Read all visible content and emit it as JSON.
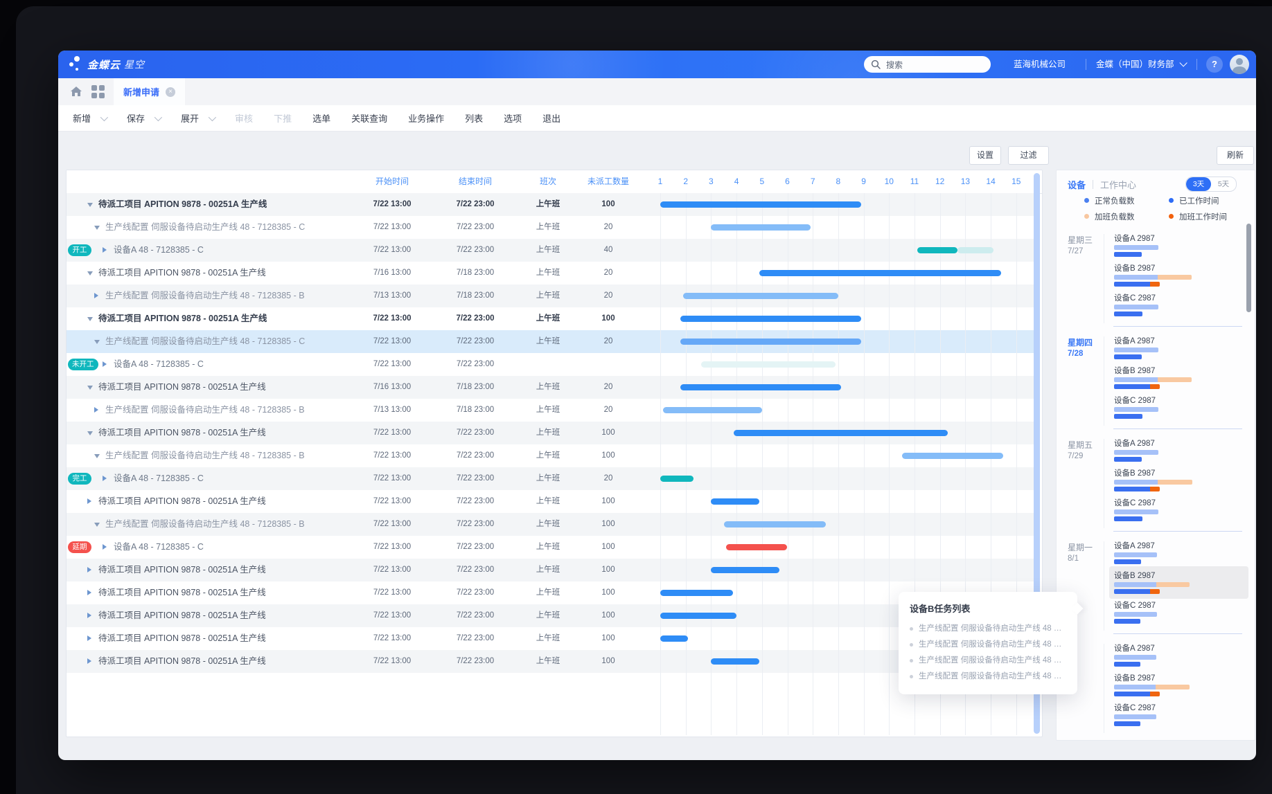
{
  "header": {
    "logo_main": "金蝶云",
    "logo_sub": "星空",
    "search_placeholder": "搜索",
    "company": "蓝海机械公司",
    "org": "金蝶（中国）财务部",
    "help": "?"
  },
  "tabs": {
    "active": "新增申请"
  },
  "toolbar": {
    "items": [
      {
        "label": "新增",
        "caret": true
      },
      {
        "label": "保存",
        "caret": true
      },
      {
        "label": "展开",
        "caret": true
      },
      {
        "label": "审核",
        "disabled": true
      },
      {
        "label": "下推",
        "disabled": true
      },
      {
        "label": "选单"
      },
      {
        "label": "关联查询"
      },
      {
        "label": "业务操作"
      },
      {
        "label": "列表"
      },
      {
        "label": "选项"
      },
      {
        "label": "退出"
      }
    ]
  },
  "actions": {
    "settings": "设置",
    "filter": "过滤",
    "refresh": "刷新"
  },
  "grid": {
    "headers": {
      "start": "开始时间",
      "end": "结束时间",
      "shift": "班次",
      "qty": "未派工数量"
    },
    "columns": [
      "1",
      "2",
      "3",
      "4",
      "5",
      "6",
      "7",
      "8",
      "9",
      "10",
      "11",
      "12",
      "13",
      "14",
      "15"
    ],
    "rows": [
      {
        "level": 1,
        "caret": "down",
        "bold": true,
        "name": "待派工项目 APITION 9878 - 00251A 生产线",
        "start": "7/22 13:00",
        "end": "7/22 23:00",
        "shift": "上午班",
        "qty": "100",
        "bars": [
          {
            "from": 1,
            "to": 8.9,
            "color": "dark"
          }
        ]
      },
      {
        "level": 2,
        "caret": "down",
        "name": "生产线配置 伺服设备待启动生产线 48 - 7128385 - C",
        "start": "7/22 13:00",
        "end": "7/22 23:00",
        "shift": "上午班",
        "qty": "20",
        "bars": [
          {
            "from": 3,
            "to": 6.9,
            "color": "light"
          }
        ]
      },
      {
        "level": 3,
        "caret": "right",
        "badge": {
          "text": "开工",
          "color": "teal"
        },
        "name": "设备A 48 - 7128385 - C",
        "start": "7/22 13:00",
        "end": "7/22 23:00",
        "shift": "上午班",
        "qty": "40",
        "bars": [
          {
            "from": 11.1,
            "to": 12.7,
            "color": "teal"
          },
          {
            "from": 12.7,
            "to": 14.1,
            "color": "tealLight"
          }
        ]
      },
      {
        "level": 1,
        "caret": "down",
        "name": "待派工项目 APITION 9878 - 00251A 生产线",
        "start": "7/16 13:00",
        "end": "7/18 23:00",
        "shift": "上午班",
        "qty": "20",
        "bars": [
          {
            "from": 4.9,
            "to": 14.4,
            "color": "dark"
          }
        ]
      },
      {
        "level": 2,
        "caret": "right",
        "name": "生产线配置 伺服设备待启动生产线 48 - 7128385 - B",
        "start": "7/13 13:00",
        "end": "7/18 23:00",
        "shift": "上午班",
        "qty": "20",
        "bars": [
          {
            "from": 1.9,
            "to": 8,
            "color": "light"
          }
        ]
      },
      {
        "level": 1,
        "caret": "down",
        "bold": true,
        "name": "待派工项目 APITION 9878 - 00251A 生产线",
        "start": "7/22 13:00",
        "end": "7/22 23:00",
        "shift": "上午班",
        "qty": "100",
        "bars": [
          {
            "from": 1.8,
            "to": 8.9,
            "color": "dark"
          }
        ]
      },
      {
        "level": 2,
        "caret": "down",
        "highlight": true,
        "name": "生产线配置 伺服设备待启动生产线 48 - 7128385 - C",
        "start": "7/22 13:00",
        "end": "7/22 23:00",
        "shift": "上午班",
        "qty": "20",
        "bars": [
          {
            "from": 1.8,
            "to": 8.9,
            "color": "medium"
          }
        ]
      },
      {
        "level": 3,
        "caret": "right",
        "badge": {
          "text": "未开工",
          "color": "teal"
        },
        "name": "设备A 48 - 7128385 - C",
        "start": "7/22 13:00",
        "end": "7/22 23:00",
        "shift": "",
        "qty": "",
        "bars": [
          {
            "from": 2.6,
            "to": 7.9,
            "color": "tealPale"
          }
        ]
      },
      {
        "level": 1,
        "caret": "down",
        "name": "待派工项目 APITION 9878 - 00251A 生产线",
        "start": "7/16 13:00",
        "end": "7/18 23:00",
        "shift": "上午班",
        "qty": "20",
        "bars": [
          {
            "from": 1.8,
            "to": 8.1,
            "color": "dark"
          }
        ]
      },
      {
        "level": 2,
        "caret": "right",
        "name": "生产线配置 伺服设备待启动生产线 48 - 7128385 - B",
        "start": "7/13 13:00",
        "end": "7/18 23:00",
        "shift": "上午班",
        "qty": "20",
        "bars": [
          {
            "from": 1.1,
            "to": 5,
            "color": "light"
          }
        ]
      },
      {
        "level": 1,
        "caret": "down",
        "name": "待派工项目 APITION 9878 - 00251A 生产线",
        "start": "7/22 13:00",
        "end": "7/22 23:00",
        "shift": "上午班",
        "qty": "100",
        "bars": [
          {
            "from": 3.9,
            "to": 12.3,
            "color": "dark"
          }
        ]
      },
      {
        "level": 2,
        "caret": "down",
        "name": "生产线配置 伺服设备待启动生产线 48 - 7128385 - B",
        "start": "7/22 13:00",
        "end": "7/22 23:00",
        "shift": "上午班",
        "qty": "100",
        "bars": [
          {
            "from": 10.5,
            "to": 14.5,
            "color": "light"
          }
        ]
      },
      {
        "level": 3,
        "caret": "right",
        "badge": {
          "text": "完工",
          "color": "teal"
        },
        "name": "设备A 48 - 7128385 - C",
        "start": "7/22 13:00",
        "end": "7/22 23:00",
        "shift": "上午班",
        "qty": "20",
        "bars": [
          {
            "from": 1,
            "to": 2.3,
            "color": "teal"
          }
        ]
      },
      {
        "level": 1,
        "caret": "right",
        "name": "待派工项目 APITION 9878 - 00251A 生产线",
        "start": "7/22 13:00",
        "end": "7/22 23:00",
        "shift": "上午班",
        "qty": "100",
        "bars": [
          {
            "from": 3,
            "to": 4.9,
            "color": "dark"
          }
        ]
      },
      {
        "level": 2,
        "caret": "down",
        "name": "生产线配置 伺服设备待启动生产线 48 - 7128385 - B",
        "start": "7/22 13:00",
        "end": "7/22 23:00",
        "shift": "上午班",
        "qty": "100",
        "bars": [
          {
            "from": 3.5,
            "to": 7.5,
            "color": "light"
          }
        ]
      },
      {
        "level": 3,
        "caret": "right",
        "badge": {
          "text": "延期",
          "color": "red"
        },
        "name": "设备A 48 - 7128385 - C",
        "start": "7/22 13:00",
        "end": "7/22 23:00",
        "shift": "上午班",
        "qty": "100",
        "bars": [
          {
            "from": 3.6,
            "to": 6,
            "color": "red"
          }
        ]
      },
      {
        "level": 1,
        "caret": "right",
        "name": "待派工项目 APITION 9878 - 00251A 生产线",
        "start": "7/22 13:00",
        "end": "7/22 23:00",
        "shift": "上午班",
        "qty": "100",
        "bars": [
          {
            "from": 3,
            "to": 5.7,
            "color": "dark"
          }
        ]
      },
      {
        "level": 1,
        "caret": "right",
        "name": "待派工项目 APITION 9878 - 00251A 生产线",
        "start": "7/22 13:00",
        "end": "7/22 23:00",
        "shift": "上午班",
        "qty": "100",
        "bars": [
          {
            "from": 1,
            "to": 3.85,
            "color": "dark"
          }
        ]
      },
      {
        "level": 1,
        "caret": "right",
        "name": "待派工项目 APITION 9878 - 00251A 生产线",
        "start": "7/22 13:00",
        "end": "7/22 23:00",
        "shift": "上午班",
        "qty": "100",
        "bars": [
          {
            "from": 1,
            "to": 4,
            "color": "dark"
          }
        ]
      },
      {
        "level": 1,
        "caret": "right",
        "name": "待派工项目 APITION 9878 - 00251A 生产线",
        "start": "7/22 13:00",
        "end": "7/22 23:00",
        "shift": "上午班",
        "qty": "100",
        "bars": [
          {
            "from": 1,
            "to": 2.1,
            "color": "dark"
          }
        ]
      },
      {
        "level": 1,
        "caret": "right",
        "name": "待派工项目 APITION 9878 - 00251A 生产线",
        "start": "7/22 13:00",
        "end": "7/22 23:00",
        "shift": "上午班",
        "qty": "100",
        "bars": [
          {
            "from": 3,
            "to": 4.9,
            "color": "dark"
          }
        ]
      }
    ]
  },
  "gantt_colors": {
    "dark": "#2e8cf6",
    "light": "#84bcf8",
    "medium": "#66a8f7",
    "teal": "#10b7bd",
    "tealLight": "#cdecee",
    "tealPale": "#e4f4f5",
    "red": "#f4514d"
  },
  "badge_colors": {
    "teal": "#10b7bd",
    "red": "#f4514d"
  },
  "panel": {
    "tab_device": "设备",
    "tab_workcenter": "工作中心",
    "toggle_on": "3天",
    "toggle_off": "5天",
    "legend": [
      {
        "label": "正常负载数",
        "color": "#4b80f0"
      },
      {
        "label": "已工作时间",
        "color": "#2e6cf6"
      },
      {
        "label": "加班负载数",
        "color": "#f8c7a0"
      },
      {
        "label": "加班工作时间",
        "color": "#f2600d"
      }
    ],
    "bar_colors": {
      "load": "#a6c1f8",
      "loadOT": "#f9c9a1",
      "work": "#3a6ff0",
      "workOT": "#f0650f"
    },
    "groups": [
      {
        "day": "星期三",
        "date": "7/27",
        "active": false,
        "devices": [
          {
            "name": "设备A 2987",
            "load": 64,
            "loadOT": 0,
            "work": 40,
            "workOT": 0
          },
          {
            "name": "设备B 2987",
            "load": 63,
            "loadOT": 49,
            "work": 52,
            "workOT": 14
          },
          {
            "name": "设备C 2987",
            "load": 64,
            "loadOT": 0,
            "work": 41,
            "workOT": 0
          }
        ]
      },
      {
        "day": "星期四",
        "date": "7/28",
        "active": true,
        "devices": [
          {
            "name": "设备A 2987",
            "load": 64,
            "loadOT": 0,
            "work": 40,
            "workOT": 0
          },
          {
            "name": "设备B 2987",
            "load": 63,
            "loadOT": 49,
            "work": 52,
            "workOT": 14
          },
          {
            "name": "设备C 2987",
            "load": 64,
            "loadOT": 0,
            "work": 41,
            "workOT": 0
          }
        ]
      },
      {
        "day": "星期五",
        "date": "7/29",
        "active": false,
        "devices": [
          {
            "name": "设备A 2987",
            "load": 64,
            "loadOT": 0,
            "work": 40,
            "workOT": 0
          },
          {
            "name": "设备B 2987",
            "load": 63,
            "loadOT": 50,
            "work": 52,
            "workOT": 14
          },
          {
            "name": "设备C 2987",
            "load": 64,
            "loadOT": 0,
            "work": 41,
            "workOT": 0
          }
        ]
      },
      {
        "day": "星期一",
        "date": "8/1",
        "active": false,
        "devices": [
          {
            "name": "设备A 2987",
            "load": 62,
            "loadOT": 0,
            "work": 39,
            "workOT": 0
          },
          {
            "name": "设备B 2987",
            "load": 61,
            "loadOT": 48,
            "work": 52,
            "workOT": 14,
            "highlight": true
          },
          {
            "name": "设备C 2987",
            "load": 62,
            "loadOT": 0,
            "work": 38,
            "workOT": 0
          }
        ]
      },
      {
        "day": "",
        "date": "",
        "active": false,
        "devices": [
          {
            "name": "设备A 2987",
            "load": 61,
            "loadOT": 0,
            "work": 38,
            "workOT": 0
          },
          {
            "name": "设备B 2987",
            "load": 60,
            "loadOT": 49,
            "work": 52,
            "workOT": 14
          },
          {
            "name": "设备C 2987",
            "load": 61,
            "loadOT": 0,
            "work": 38,
            "workOT": 0
          }
        ]
      }
    ]
  },
  "tooltip": {
    "title": "设备B任务列表",
    "items": [
      "生产线配置 伺服设备待启动生产线 48 …",
      "生产线配置 伺服设备待启动生产线 48 …",
      "生产线配置 伺服设备待启动生产线 48 …",
      "生产线配置 伺服设备待启动生产线 48 …"
    ]
  }
}
